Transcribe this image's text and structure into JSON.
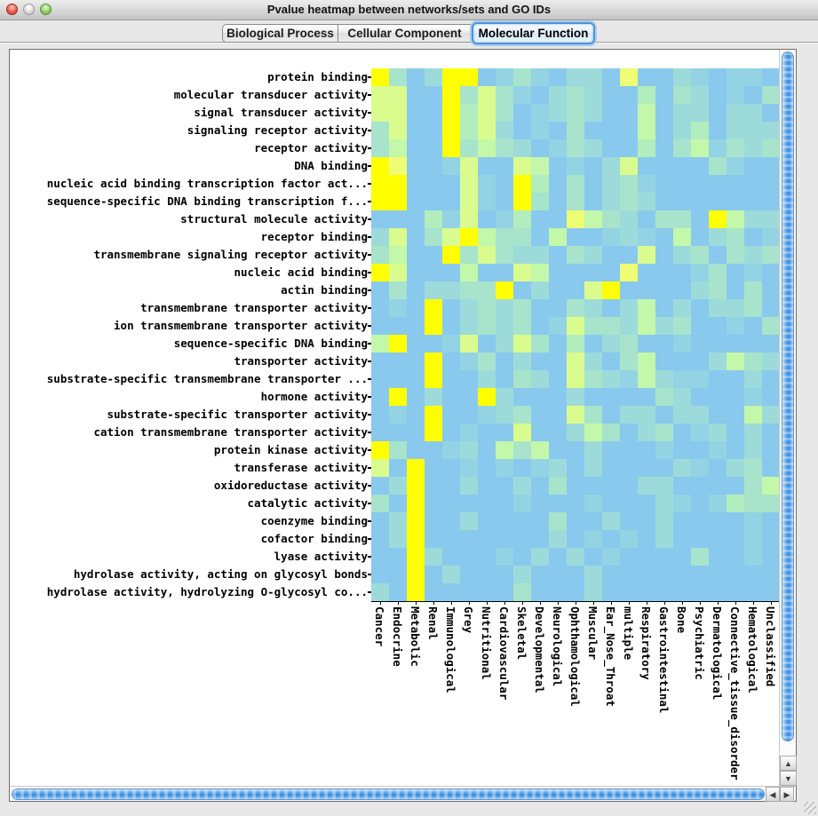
{
  "window": {
    "title": "Pvalue heatmap between networks/sets and GO IDs"
  },
  "tabs": [
    {
      "label": "Biological Process",
      "selected": false
    },
    {
      "label": "Cellular Component",
      "selected": false
    },
    {
      "label": "Molecular Function",
      "selected": true
    }
  ],
  "scrollbars": {
    "up_glyph": "▲",
    "down_glyph": "▼",
    "left_glyph": "◀",
    "right_glyph": "▶"
  },
  "colors": {
    "window_background": "#e8e8e8",
    "panel_background": "#ffffff",
    "selected_tab_ring": "#4f94d8",
    "scroll_thumb_blue": "#3c8bde",
    "heatmap_low": "#89c9ee",
    "heatmap_high": "#ffff00"
  },
  "chart_data": {
    "type": "heatmap",
    "title": "Pvalue heatmap between networks/sets and GO IDs",
    "tab_shown": "Molecular Function",
    "rows": [
      "protein binding",
      "molecular transducer activity",
      "signal transducer activity",
      "signaling receptor activity",
      "receptor activity",
      "DNA binding",
      "nucleic acid binding transcription factor act...",
      "sequence-specific DNA binding transcription f...",
      "structural molecule activity",
      "receptor binding",
      "transmembrane signaling receptor activity",
      "nucleic acid binding",
      "actin binding",
      "transmembrane transporter activity",
      "ion transmembrane transporter activity",
      "sequence-specific DNA binding",
      "transporter activity",
      "substrate-specific transmembrane transporter ...",
      "hormone activity",
      "substrate-specific transporter activity",
      "cation transmembrane transporter activity",
      "protein kinase activity",
      "transferase activity",
      "oxidoreductase activity",
      "catalytic activity",
      "coenzyme binding",
      "cofactor binding",
      "lyase activity",
      "hydrolase activity, acting on glycosyl bonds",
      "hydrolase activity, hydrolyzing O-glycosyl co..."
    ],
    "columns": [
      "Cancer",
      "Endocrine",
      "Metabolic",
      "Renal",
      "Immunological",
      "Grey",
      "Nutritional",
      "Cardiovascular",
      "Skeletal",
      "Developmental",
      "Neurological",
      "Ophthamological",
      "Muscular",
      "Ear_Nose_Throat",
      "multiple",
      "Respiratory",
      "Gastrointestinal",
      "Bone",
      "Psychiatric",
      "Dermatological",
      "Connective_tissue_disorder",
      "Hematological",
      "Unclassified"
    ],
    "palette_note": "index 0 = weakest p-value signal (blue), 8 = strongest (yellow)",
    "palette": [
      "#89c9ee",
      "#93d3e4",
      "#9ddbda",
      "#a7e4cb",
      "#b2edbd",
      "#c3f7a9",
      "#dafc8e",
      "#edfd74",
      "#ffff00"
    ],
    "values": [
      [
        8,
        3,
        0,
        2,
        8,
        8,
        0,
        1,
        3,
        1,
        0,
        2,
        2,
        0,
        7,
        0,
        0,
        2,
        1,
        0,
        1,
        1,
        0
      ],
      [
        6,
        6,
        0,
        0,
        8,
        3,
        6,
        3,
        1,
        0,
        2,
        3,
        2,
        0,
        0,
        4,
        0,
        3,
        2,
        0,
        1,
        0,
        3
      ],
      [
        6,
        6,
        0,
        0,
        8,
        4,
        6,
        3,
        0,
        1,
        2,
        3,
        2,
        0,
        0,
        5,
        0,
        2,
        2,
        0,
        2,
        2,
        0
      ],
      [
        3,
        6,
        0,
        0,
        8,
        4,
        6,
        2,
        0,
        1,
        0,
        3,
        0,
        0,
        0,
        5,
        0,
        2,
        4,
        0,
        2,
        2,
        2
      ],
      [
        3,
        5,
        0,
        0,
        8,
        3,
        5,
        3,
        2,
        0,
        1,
        3,
        2,
        0,
        0,
        4,
        0,
        3,
        5,
        1,
        3,
        2,
        3
      ],
      [
        8,
        7,
        0,
        0,
        1,
        6,
        0,
        0,
        6,
        5,
        0,
        1,
        0,
        2,
        6,
        0,
        0,
        0,
        0,
        3,
        1,
        0,
        0
      ],
      [
        8,
        8,
        0,
        0,
        0,
        6,
        1,
        0,
        8,
        4,
        0,
        3,
        0,
        2,
        3,
        1,
        0,
        0,
        0,
        0,
        0,
        0,
        0
      ],
      [
        8,
        8,
        0,
        0,
        0,
        6,
        1,
        0,
        8,
        3,
        0,
        3,
        0,
        2,
        3,
        2,
        0,
        0,
        0,
        0,
        0,
        0,
        0
      ],
      [
        0,
        0,
        0,
        4,
        1,
        6,
        0,
        1,
        4,
        0,
        0,
        7,
        5,
        3,
        2,
        0,
        3,
        3,
        0,
        8,
        5,
        2,
        2
      ],
      [
        2,
        6,
        0,
        3,
        6,
        8,
        5,
        3,
        3,
        0,
        5,
        0,
        0,
        1,
        2,
        1,
        0,
        5,
        0,
        2,
        3,
        0,
        1
      ],
      [
        3,
        5,
        0,
        0,
        8,
        3,
        6,
        3,
        2,
        2,
        0,
        3,
        2,
        0,
        0,
        6,
        0,
        2,
        3,
        0,
        3,
        2,
        3
      ],
      [
        8,
        6,
        0,
        0,
        0,
        5,
        0,
        0,
        6,
        5,
        0,
        0,
        0,
        0,
        7,
        0,
        0,
        0,
        1,
        3,
        0,
        1,
        0
      ],
      [
        0,
        3,
        0,
        2,
        2,
        3,
        3,
        8,
        0,
        2,
        0,
        0,
        6,
        8,
        0,
        0,
        0,
        0,
        2,
        3,
        0,
        3,
        0
      ],
      [
        0,
        1,
        0,
        8,
        0,
        2,
        3,
        2,
        3,
        0,
        0,
        3,
        2,
        0,
        2,
        5,
        0,
        2,
        0,
        2,
        2,
        3,
        0
      ],
      [
        0,
        0,
        0,
        8,
        0,
        2,
        3,
        2,
        3,
        0,
        1,
        6,
        3,
        3,
        2,
        5,
        2,
        3,
        0,
        0,
        1,
        0,
        3
      ],
      [
        5,
        8,
        0,
        0,
        1,
        6,
        0,
        2,
        6,
        3,
        0,
        4,
        0,
        2,
        3,
        0,
        0,
        1,
        0,
        0,
        0,
        0,
        0
      ],
      [
        0,
        0,
        0,
        8,
        0,
        1,
        3,
        0,
        2,
        0,
        0,
        6,
        2,
        0,
        3,
        5,
        0,
        0,
        0,
        2,
        5,
        3,
        2
      ],
      [
        0,
        0,
        0,
        8,
        0,
        0,
        2,
        0,
        3,
        2,
        0,
        6,
        3,
        2,
        1,
        5,
        2,
        1,
        1,
        0,
        0,
        2,
        0
      ],
      [
        0,
        8,
        0,
        2,
        0,
        0,
        8,
        2,
        0,
        0,
        0,
        2,
        0,
        0,
        0,
        0,
        3,
        2,
        0,
        0,
        0,
        1,
        0
      ],
      [
        0,
        1,
        0,
        8,
        0,
        0,
        1,
        2,
        3,
        0,
        0,
        6,
        3,
        0,
        2,
        2,
        0,
        2,
        2,
        0,
        0,
        5,
        2
      ],
      [
        0,
        0,
        0,
        8,
        0,
        1,
        0,
        0,
        6,
        0,
        0,
        2,
        5,
        3,
        0,
        2,
        3,
        0,
        1,
        2,
        0,
        2,
        0
      ],
      [
        8,
        3,
        0,
        0,
        1,
        2,
        0,
        5,
        3,
        5,
        0,
        0,
        2,
        0,
        0,
        0,
        1,
        0,
        0,
        1,
        0,
        2,
        0
      ],
      [
        6,
        0,
        8,
        0,
        0,
        1,
        0,
        1,
        0,
        1,
        2,
        0,
        2,
        0,
        0,
        0,
        0,
        2,
        1,
        0,
        2,
        3,
        0
      ],
      [
        0,
        2,
        8,
        0,
        0,
        2,
        0,
        0,
        2,
        0,
        3,
        0,
        0,
        0,
        0,
        2,
        2,
        0,
        0,
        0,
        0,
        3,
        5
      ],
      [
        3,
        0,
        8,
        0,
        0,
        0,
        0,
        0,
        1,
        0,
        0,
        0,
        1,
        0,
        0,
        0,
        2,
        1,
        0,
        1,
        4,
        3,
        3
      ],
      [
        0,
        2,
        8,
        0,
        0,
        2,
        0,
        0,
        0,
        0,
        3,
        0,
        0,
        2,
        0,
        0,
        2,
        0,
        0,
        0,
        0,
        1,
        0
      ],
      [
        0,
        2,
        8,
        0,
        0,
        0,
        0,
        0,
        0,
        0,
        2,
        0,
        1,
        0,
        1,
        0,
        2,
        0,
        0,
        0,
        0,
        1,
        0
      ],
      [
        0,
        0,
        8,
        2,
        0,
        0,
        0,
        1,
        0,
        2,
        0,
        2,
        0,
        1,
        0,
        0,
        0,
        0,
        3,
        0,
        0,
        1,
        0
      ],
      [
        0,
        0,
        8,
        0,
        2,
        0,
        0,
        0,
        2,
        0,
        0,
        0,
        2,
        0,
        0,
        0,
        0,
        0,
        0,
        0,
        0,
        0,
        0
      ],
      [
        2,
        0,
        8,
        0,
        0,
        0,
        0,
        0,
        3,
        0,
        0,
        0,
        2,
        0,
        0,
        0,
        0,
        0,
        0,
        0,
        0,
        0,
        0
      ]
    ]
  }
}
